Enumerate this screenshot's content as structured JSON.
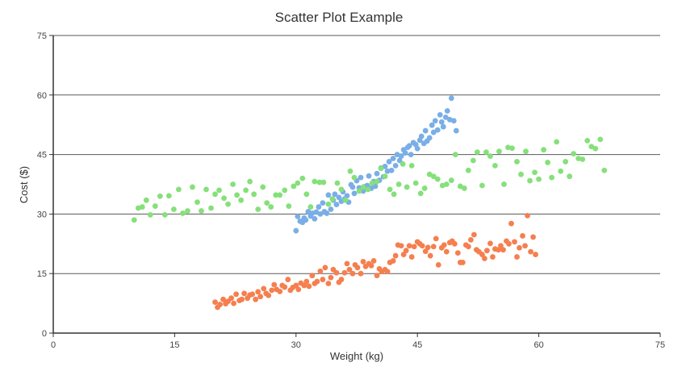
{
  "chart_data": {
    "type": "scatter",
    "title": "Scatter Plot Example",
    "xlabel": "Weight (kg)",
    "ylabel": "Cost ($)",
    "xlim": [
      0,
      75
    ],
    "ylim": [
      0,
      75
    ],
    "x_ticks": [
      0,
      15,
      30,
      45,
      60,
      75
    ],
    "y_ticks": [
      0,
      15,
      30,
      45,
      60,
      75
    ],
    "grid": "horizontal",
    "legend": "none",
    "series": [
      {
        "color": "#7aaee6",
        "points": [
          [
            30.0,
            25.8
          ],
          [
            30.2,
            29.4
          ],
          [
            30.5,
            28.2
          ],
          [
            30.8,
            27.9
          ],
          [
            31.0,
            29.0
          ],
          [
            31.2,
            28.5
          ],
          [
            31.5,
            30.6
          ],
          [
            31.8,
            29.5
          ],
          [
            32.0,
            30.2
          ],
          [
            32.3,
            28.8
          ],
          [
            32.5,
            30.5
          ],
          [
            32.8,
            31.8
          ],
          [
            33.0,
            30.0
          ],
          [
            33.3,
            32.8
          ],
          [
            33.5,
            30.6
          ],
          [
            33.8,
            30.2
          ],
          [
            34.0,
            34.8
          ],
          [
            34.3,
            31.2
          ],
          [
            34.6,
            33.5
          ],
          [
            34.8,
            35.0
          ],
          [
            35.0,
            32.4
          ],
          [
            35.3,
            34.2
          ],
          [
            35.6,
            33.2
          ],
          [
            35.8,
            35.6
          ],
          [
            36.0,
            33.8
          ],
          [
            36.3,
            34.6
          ],
          [
            36.5,
            33.0
          ],
          [
            36.8,
            37.4
          ],
          [
            37.0,
            36.8
          ],
          [
            37.2,
            35.2
          ],
          [
            37.5,
            38.4
          ],
          [
            37.8,
            36.6
          ],
          [
            38.0,
            39.2
          ],
          [
            38.3,
            35.8
          ],
          [
            38.5,
            36.9
          ],
          [
            38.8,
            37.2
          ],
          [
            39.0,
            39.6
          ],
          [
            39.3,
            36.5
          ],
          [
            39.6,
            38.2
          ],
          [
            39.8,
            37.0
          ],
          [
            40.0,
            40.2
          ],
          [
            40.3,
            38.5
          ],
          [
            40.5,
            41.6
          ],
          [
            40.8,
            39.4
          ],
          [
            41.0,
            42.0
          ],
          [
            41.3,
            40.8
          ],
          [
            41.5,
            43.2
          ],
          [
            41.8,
            41.0
          ],
          [
            42.0,
            44.0
          ],
          [
            42.3,
            42.2
          ],
          [
            42.5,
            45.0
          ],
          [
            42.8,
            43.5
          ],
          [
            43.0,
            44.6
          ],
          [
            43.3,
            46.2
          ],
          [
            43.5,
            45.4
          ],
          [
            43.8,
            46.8
          ],
          [
            44.0,
            47.2
          ],
          [
            44.2,
            45.0
          ],
          [
            44.5,
            48.0
          ],
          [
            44.8,
            47.5
          ],
          [
            45.0,
            46.5
          ],
          [
            45.3,
            48.6
          ],
          [
            45.5,
            49.6
          ],
          [
            45.8,
            47.8
          ],
          [
            46.0,
            51.0
          ],
          [
            46.2,
            48.4
          ],
          [
            46.5,
            49.2
          ],
          [
            46.8,
            52.4
          ],
          [
            47.0,
            50.6
          ],
          [
            47.2,
            53.5
          ],
          [
            47.5,
            51.2
          ],
          [
            47.8,
            55.0
          ],
          [
            48.0,
            53.2
          ],
          [
            48.2,
            52.0
          ],
          [
            48.5,
            54.4
          ],
          [
            48.7,
            56.0
          ],
          [
            49.0,
            53.8
          ],
          [
            49.2,
            59.2
          ],
          [
            49.5,
            53.5
          ],
          [
            49.8,
            51.0
          ]
        ]
      },
      {
        "color": "#86e07a",
        "points": [
          [
            10.0,
            28.5
          ],
          [
            10.5,
            31.5
          ],
          [
            11.0,
            31.8
          ],
          [
            11.5,
            33.5
          ],
          [
            12.0,
            29.8
          ],
          [
            12.6,
            32.0
          ],
          [
            13.2,
            34.5
          ],
          [
            13.8,
            29.8
          ],
          [
            14.3,
            34.6
          ],
          [
            14.9,
            31.2
          ],
          [
            15.5,
            36.2
          ],
          [
            16.0,
            30.2
          ],
          [
            16.6,
            30.8
          ],
          [
            17.2,
            36.8
          ],
          [
            17.8,
            33.0
          ],
          [
            18.3,
            30.8
          ],
          [
            18.9,
            36.2
          ],
          [
            19.5,
            31.5
          ],
          [
            20.0,
            35.0
          ],
          [
            20.5,
            36.0
          ],
          [
            21.1,
            34.0
          ],
          [
            21.6,
            32.5
          ],
          [
            22.2,
            37.5
          ],
          [
            22.7,
            34.8
          ],
          [
            23.2,
            33.5
          ],
          [
            23.8,
            36.0
          ],
          [
            24.3,
            38.2
          ],
          [
            24.8,
            35.0
          ],
          [
            25.3,
            31.2
          ],
          [
            25.9,
            36.8
          ],
          [
            26.4,
            32.8
          ],
          [
            26.9,
            31.8
          ],
          [
            27.5,
            34.8
          ],
          [
            28.0,
            34.8
          ],
          [
            28.6,
            36.0
          ],
          [
            29.1,
            32.0
          ],
          [
            29.7,
            37.0
          ],
          [
            30.2,
            37.8
          ],
          [
            30.8,
            39.0
          ],
          [
            31.3,
            35.0
          ],
          [
            31.8,
            31.8
          ],
          [
            32.3,
            38.2
          ],
          [
            32.9,
            38.0
          ],
          [
            33.4,
            38.0
          ],
          [
            34.0,
            32.5
          ],
          [
            34.5,
            33.8
          ],
          [
            35.1,
            37.8
          ],
          [
            35.6,
            36.2
          ],
          [
            36.1,
            33.5
          ],
          [
            36.7,
            40.8
          ],
          [
            37.2,
            39.2
          ],
          [
            37.8,
            35.8
          ],
          [
            38.3,
            36.8
          ],
          [
            38.9,
            36.2
          ],
          [
            39.4,
            37.8
          ],
          [
            40.0,
            38.2
          ],
          [
            40.5,
            41.5
          ],
          [
            41.0,
            39.5
          ],
          [
            41.6,
            36.2
          ],
          [
            42.1,
            35.0
          ],
          [
            42.7,
            37.5
          ],
          [
            43.2,
            42.6
          ],
          [
            43.7,
            36.8
          ],
          [
            44.3,
            42.2
          ],
          [
            44.8,
            37.8
          ],
          [
            45.4,
            35.2
          ],
          [
            45.9,
            36.5
          ],
          [
            46.5,
            40.0
          ],
          [
            47.0,
            39.5
          ],
          [
            47.5,
            38.8
          ],
          [
            48.1,
            37.2
          ],
          [
            48.6,
            37.5
          ],
          [
            49.2,
            38.5
          ],
          [
            49.7,
            45.0
          ],
          [
            50.3,
            37.0
          ],
          [
            50.8,
            36.5
          ],
          [
            51.3,
            41.0
          ],
          [
            51.9,
            43.5
          ],
          [
            52.4,
            45.6
          ],
          [
            53.0,
            37.2
          ],
          [
            53.5,
            45.6
          ],
          [
            54.0,
            44.6
          ],
          [
            54.6,
            42.2
          ],
          [
            55.1,
            45.8
          ],
          [
            55.7,
            37.5
          ],
          [
            56.2,
            46.8
          ],
          [
            56.7,
            46.6
          ],
          [
            57.3,
            43.2
          ],
          [
            57.8,
            40.0
          ],
          [
            58.4,
            45.8
          ],
          [
            58.9,
            38.4
          ],
          [
            59.5,
            40.5
          ],
          [
            60.0,
            38.8
          ],
          [
            60.6,
            46.2
          ],
          [
            61.1,
            43.0
          ],
          [
            61.6,
            39.2
          ],
          [
            62.2,
            48.2
          ],
          [
            62.7,
            40.8
          ],
          [
            63.3,
            43.2
          ],
          [
            63.8,
            39.5
          ],
          [
            64.3,
            45.2
          ],
          [
            64.9,
            44.0
          ],
          [
            65.4,
            43.8
          ],
          [
            66.0,
            48.5
          ],
          [
            66.5,
            47.0
          ],
          [
            67.0,
            46.5
          ],
          [
            67.6,
            48.8
          ],
          [
            68.1,
            41.0
          ]
        ]
      },
      {
        "color": "#f57f4f",
        "points": [
          [
            20.0,
            7.8
          ],
          [
            20.3,
            6.5
          ],
          [
            20.6,
            7.2
          ],
          [
            21.0,
            8.5
          ],
          [
            21.3,
            7.4
          ],
          [
            21.6,
            8.0
          ],
          [
            22.0,
            8.8
          ],
          [
            22.3,
            7.5
          ],
          [
            22.6,
            9.8
          ],
          [
            23.0,
            8.2
          ],
          [
            23.3,
            8.5
          ],
          [
            23.6,
            10.0
          ],
          [
            24.0,
            8.8
          ],
          [
            24.3,
            9.6
          ],
          [
            24.6,
            9.8
          ],
          [
            25.0,
            8.5
          ],
          [
            25.3,
            10.4
          ],
          [
            25.6,
            9.2
          ],
          [
            26.0,
            11.2
          ],
          [
            26.3,
            10.0
          ],
          [
            26.6,
            9.5
          ],
          [
            27.0,
            10.8
          ],
          [
            27.3,
            12.2
          ],
          [
            27.6,
            11.0
          ],
          [
            28.0,
            10.5
          ],
          [
            28.3,
            12.0
          ],
          [
            28.6,
            11.6
          ],
          [
            29.0,
            13.5
          ],
          [
            29.3,
            10.8
          ],
          [
            29.6,
            11.5
          ],
          [
            30.0,
            12.0
          ],
          [
            30.3,
            11.0
          ],
          [
            30.6,
            12.6
          ],
          [
            31.0,
            12.0
          ],
          [
            31.3,
            13.0
          ],
          [
            31.6,
            11.8
          ],
          [
            32.0,
            14.5
          ],
          [
            32.3,
            12.5
          ],
          [
            32.6,
            13.0
          ],
          [
            33.0,
            15.6
          ],
          [
            33.3,
            13.5
          ],
          [
            33.6,
            16.5
          ],
          [
            34.0,
            12.5
          ],
          [
            34.3,
            14.0
          ],
          [
            34.6,
            16.0
          ],
          [
            35.0,
            15.2
          ],
          [
            35.3,
            12.8
          ],
          [
            35.6,
            13.5
          ],
          [
            36.0,
            15.2
          ],
          [
            36.3,
            17.5
          ],
          [
            36.6,
            16.0
          ],
          [
            37.0,
            15.0
          ],
          [
            37.3,
            17.2
          ],
          [
            37.6,
            16.5
          ],
          [
            38.0,
            15.0
          ],
          [
            38.3,
            18.0
          ],
          [
            38.6,
            16.8
          ],
          [
            39.0,
            17.5
          ],
          [
            39.3,
            17.0
          ],
          [
            39.6,
            18.2
          ],
          [
            40.0,
            14.5
          ],
          [
            40.3,
            16.2
          ],
          [
            40.6,
            15.5
          ],
          [
            41.0,
            16.0
          ],
          [
            41.3,
            15.5
          ],
          [
            41.6,
            17.8
          ],
          [
            42.0,
            18.2
          ],
          [
            42.3,
            19.5
          ],
          [
            42.6,
            22.2
          ],
          [
            43.0,
            22.0
          ],
          [
            43.3,
            19.8
          ],
          [
            43.6,
            20.8
          ],
          [
            44.0,
            22.0
          ],
          [
            44.3,
            19.2
          ],
          [
            44.6,
            21.8
          ],
          [
            45.0,
            23.0
          ],
          [
            45.3,
            22.5
          ],
          [
            45.6,
            22.0
          ],
          [
            46.0,
            20.6
          ],
          [
            46.3,
            21.6
          ],
          [
            46.6,
            19.5
          ],
          [
            47.0,
            21.8
          ],
          [
            47.3,
            23.8
          ],
          [
            47.6,
            17.2
          ],
          [
            48.0,
            21.5
          ],
          [
            48.3,
            22.2
          ],
          [
            48.6,
            20.5
          ],
          [
            49.0,
            22.8
          ],
          [
            49.3,
            23.2
          ],
          [
            49.6,
            22.5
          ],
          [
            50.0,
            20.2
          ],
          [
            50.3,
            17.8
          ],
          [
            50.6,
            17.8
          ],
          [
            51.0,
            22.2
          ],
          [
            51.3,
            21.8
          ],
          [
            51.6,
            23.5
          ],
          [
            52.0,
            24.8
          ],
          [
            52.3,
            21.0
          ],
          [
            52.6,
            20.5
          ],
          [
            53.0,
            19.8
          ],
          [
            53.3,
            18.8
          ],
          [
            53.6,
            20.8
          ],
          [
            54.0,
            22.6
          ],
          [
            54.3,
            19.2
          ],
          [
            54.6,
            21.2
          ],
          [
            55.0,
            21.0
          ],
          [
            55.3,
            22.0
          ],
          [
            55.6,
            21.0
          ],
          [
            56.0,
            23.2
          ],
          [
            56.3,
            22.5
          ],
          [
            56.6,
            27.6
          ],
          [
            57.0,
            23.0
          ],
          [
            57.3,
            19.2
          ],
          [
            57.6,
            21.5
          ],
          [
            58.0,
            24.5
          ],
          [
            58.3,
            22.0
          ],
          [
            58.6,
            29.6
          ],
          [
            59.0,
            20.5
          ],
          [
            59.3,
            24.2
          ],
          [
            59.6,
            19.8
          ]
        ]
      }
    ]
  }
}
